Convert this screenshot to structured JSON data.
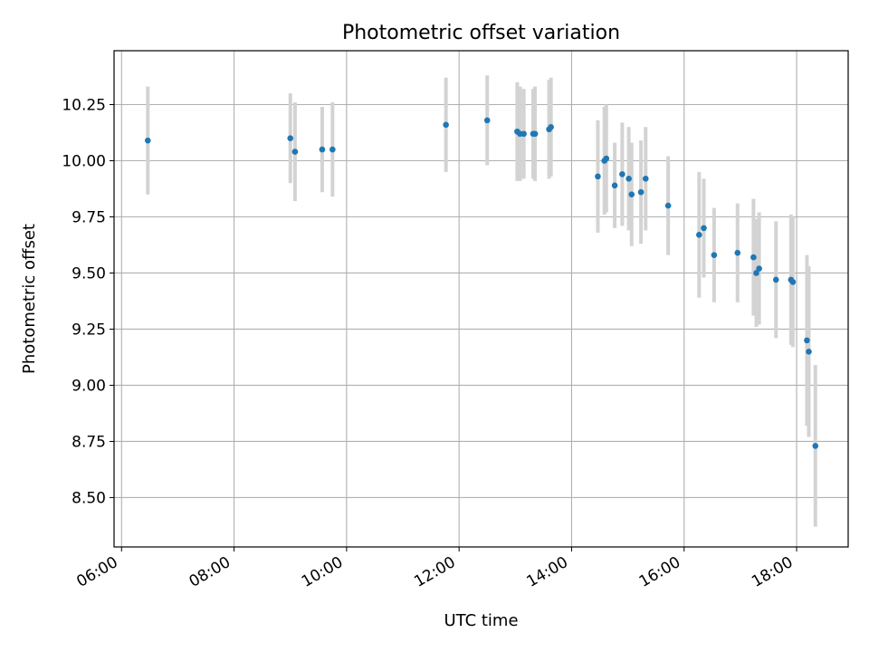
{
  "chart_data": {
    "type": "scatter",
    "title": "Photometric offset variation",
    "xlabel": "UTC time",
    "ylabel": "Photometric offset",
    "x_axis_kind": "time",
    "xlim": [
      "05:52",
      "18:55"
    ],
    "ylim": [
      8.28,
      10.49
    ],
    "x_ticks": [
      "06:00",
      "08:00",
      "10:00",
      "12:00",
      "14:00",
      "16:00",
      "18:00"
    ],
    "y_ticks": [
      "8.50",
      "8.75",
      "9.00",
      "9.25",
      "9.50",
      "9.75",
      "10.00",
      "10.25"
    ],
    "grid": true,
    "marker_color": "#1f77b4",
    "errorbar_color": "#d3d3d3",
    "series": [
      {
        "points": [
          {
            "x": "06:28",
            "y": 10.09,
            "err": 0.24
          },
          {
            "x": "09:00",
            "y": 10.1,
            "err": 0.2
          },
          {
            "x": "09:05",
            "y": 10.04,
            "err": 0.22
          },
          {
            "x": "09:34",
            "y": 10.05,
            "err": 0.19
          },
          {
            "x": "09:45",
            "y": 10.05,
            "err": 0.21
          },
          {
            "x": "11:46",
            "y": 10.16,
            "err": 0.21
          },
          {
            "x": "12:30",
            "y": 10.18,
            "err": 0.2
          },
          {
            "x": "13:02",
            "y": 10.13,
            "err": 0.22
          },
          {
            "x": "13:05",
            "y": 10.12,
            "err": 0.21
          },
          {
            "x": "13:09",
            "y": 10.12,
            "err": 0.2
          },
          {
            "x": "13:19",
            "y": 10.12,
            "err": 0.2
          },
          {
            "x": "13:21",
            "y": 10.12,
            "err": 0.21
          },
          {
            "x": "13:36",
            "y": 10.14,
            "err": 0.22
          },
          {
            "x": "13:38",
            "y": 10.15,
            "err": 0.22
          },
          {
            "x": "14:28",
            "y": 9.93,
            "err": 0.25
          },
          {
            "x": "14:35",
            "y": 10.0,
            "err": 0.24
          },
          {
            "x": "14:37",
            "y": 10.01,
            "err": 0.24
          },
          {
            "x": "14:46",
            "y": 9.89,
            "err": 0.19
          },
          {
            "x": "14:54",
            "y": 9.94,
            "err": 0.23
          },
          {
            "x": "15:01",
            "y": 9.92,
            "err": 0.23
          },
          {
            "x": "15:04",
            "y": 9.85,
            "err": 0.23
          },
          {
            "x": "15:14",
            "y": 9.86,
            "err": 0.23
          },
          {
            "x": "15:19",
            "y": 9.92,
            "err": 0.23
          },
          {
            "x": "15:43",
            "y": 9.8,
            "err": 0.22
          },
          {
            "x": "16:16",
            "y": 9.67,
            "err": 0.28
          },
          {
            "x": "16:21",
            "y": 9.7,
            "err": 0.22
          },
          {
            "x": "16:32",
            "y": 9.58,
            "err": 0.21
          },
          {
            "x": "16:57",
            "y": 9.59,
            "err": 0.22
          },
          {
            "x": "17:14",
            "y": 9.57,
            "err": 0.26
          },
          {
            "x": "17:17",
            "y": 9.5,
            "err": 0.24
          },
          {
            "x": "17:20",
            "y": 9.52,
            "err": 0.25
          },
          {
            "x": "17:38",
            "y": 9.47,
            "err": 0.26
          },
          {
            "x": "17:54",
            "y": 9.47,
            "err": 0.29
          },
          {
            "x": "17:56",
            "y": 9.46,
            "err": 0.29
          },
          {
            "x": "18:11",
            "y": 9.2,
            "err": 0.38
          },
          {
            "x": "18:13",
            "y": 9.15,
            "err": 0.38
          },
          {
            "x": "18:20",
            "y": 8.73,
            "err": 0.36
          }
        ]
      }
    ]
  }
}
